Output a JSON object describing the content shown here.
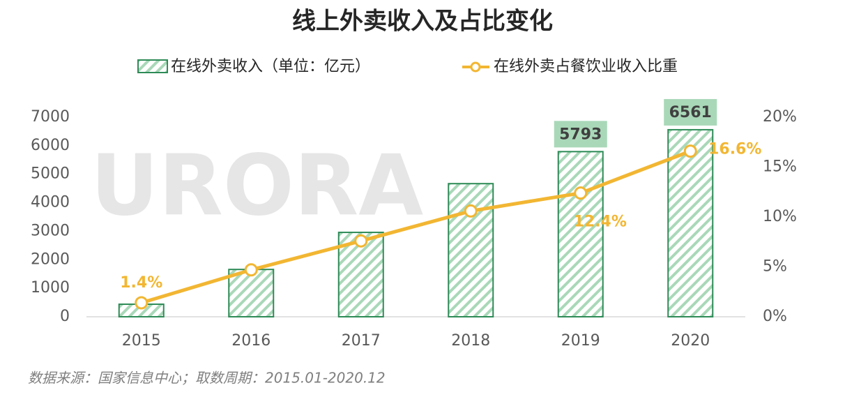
{
  "chart_data": {
    "type": "bar_line",
    "title": "线上外卖收入及占比变化",
    "watermark": "URORA",
    "categories": [
      "2015",
      "2016",
      "2017",
      "2018",
      "2019",
      "2020"
    ],
    "series": [
      {
        "name": "在线外卖收入（单位：亿元）",
        "type": "bar",
        "color": "#2e8b57",
        "values": [
          440,
          1660,
          2960,
          4670,
          5793,
          6561
        ],
        "value_labels": [
          null,
          null,
          null,
          null,
          "5793",
          "6561"
        ]
      },
      {
        "name": "在线外卖占餐饮业收入比重",
        "type": "line",
        "axis": "y2",
        "color": "#f2b632",
        "values": [
          1.4,
          4.7,
          7.6,
          10.6,
          12.4,
          16.6
        ],
        "value_labels": [
          "1.4%",
          null,
          null,
          null,
          "12.4%",
          "16.6%"
        ]
      }
    ],
    "ylim": [
      0,
      7000
    ],
    "yticks": [
      0,
      1000,
      2000,
      3000,
      4000,
      5000,
      6000,
      7000
    ],
    "y2lim": [
      0,
      20
    ],
    "y2ticks": [
      {
        "value": 0,
        "label": "0%"
      },
      {
        "value": 5,
        "label": "5%"
      },
      {
        "value": 10,
        "label": "10%"
      },
      {
        "value": 15,
        "label": "15%"
      },
      {
        "value": 20,
        "label": "20%"
      }
    ],
    "source": "数据来源：国家信息中心；取数周期：2015.01-2020.12"
  }
}
